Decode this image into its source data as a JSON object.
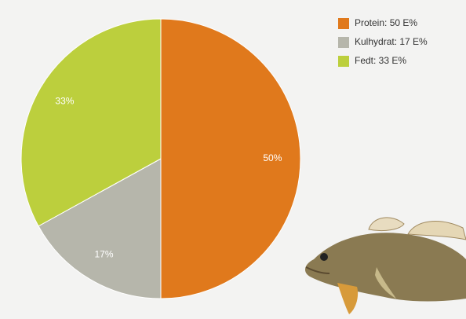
{
  "chart_data": {
    "type": "pie",
    "categories": [
      "Protein: 50 E%",
      "Kulhydrat: 17 E%",
      "Fedt: 33 E%"
    ],
    "values": [
      50,
      17,
      33
    ],
    "value_labels": [
      "50%",
      "17%",
      "33%"
    ],
    "colors": [
      "#e0791c",
      "#b6b6ab",
      "#bccf3d"
    ],
    "legend": "top-right"
  }
}
